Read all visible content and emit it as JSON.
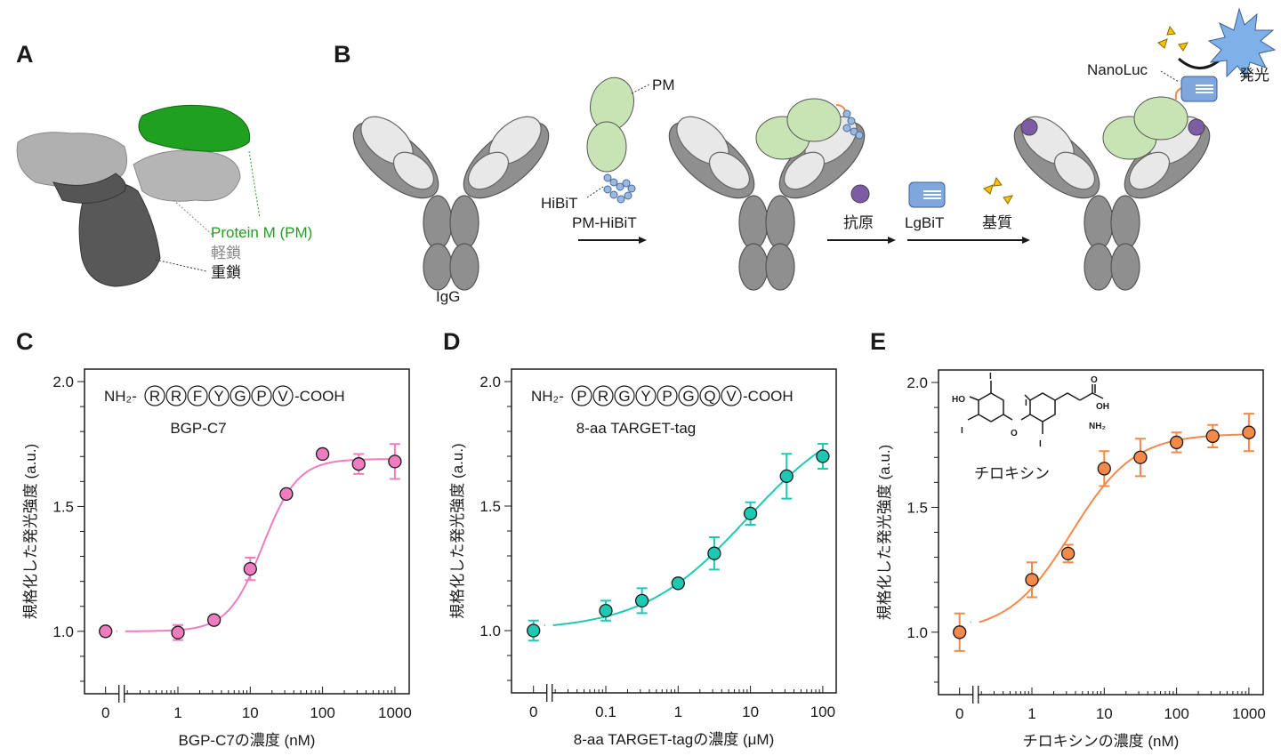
{
  "panels": {
    "A": {
      "label": "A",
      "pm_label": "Protein M (PM)",
      "light_chain": "軽鎖",
      "heavy_chain": "重鎖",
      "colors": {
        "pm": "#1fa11f",
        "light": "#b5b5b5",
        "heavy": "#555555"
      }
    },
    "B": {
      "label": "B",
      "igg_label": "IgG",
      "pm_label": "PM",
      "hibit_label": "HiBiT",
      "pm_hibit_label": "PM-HiBiT",
      "antigen_label": "抗原",
      "lgbit_label": "LgBiT",
      "substrate_label": "基質",
      "nanoluc_label": "NanoLuc",
      "luminescence_label": "発光",
      "colors": {
        "pm": "#c8e3b4",
        "hibit": "#9ab8e0",
        "antigen": "#7d5ca6",
        "substrate": "#f5c400",
        "light": "#7fb0e8"
      }
    },
    "C": {
      "label": "C"
    },
    "D": {
      "label": "D"
    },
    "E": {
      "label": "E"
    }
  },
  "chart_data": [
    {
      "type": "scatter",
      "panel": "C",
      "color": "#f07cc0",
      "annotation_prefix": "NH₂-",
      "sequence": [
        "R",
        "R",
        "F",
        "Y",
        "G",
        "P",
        "V"
      ],
      "annotation_suffix": "-COOH",
      "annotation_name": "BGP-C7",
      "xlabel": "BGP-C7の濃度 (nM)",
      "ylabel": "規格化した発光強度 (a.u.)",
      "xscale": "log with axis break at 0",
      "xticks": [
        "0",
        "1",
        "10",
        "100",
        "1000"
      ],
      "yticks": [
        "1.0",
        "1.5",
        "2.0"
      ],
      "ylim": [
        0.75,
        2.05
      ],
      "points": [
        {
          "x": 0,
          "y": 1.0,
          "err": 0.0
        },
        {
          "x": 1,
          "y": 0.995,
          "err": 0.03
        },
        {
          "x": 3.16,
          "y": 1.045,
          "err": 0.0
        },
        {
          "x": 10,
          "y": 1.25,
          "err": 0.045
        },
        {
          "x": 31.6,
          "y": 1.55,
          "err": 0.0
        },
        {
          "x": 100,
          "y": 1.71,
          "err": 0.0
        },
        {
          "x": 316,
          "y": 1.67,
          "err": 0.04
        },
        {
          "x": 1000,
          "y": 1.68,
          "err": 0.07
        }
      ],
      "fit": {
        "bottom": 1.0,
        "top": 1.69,
        "ec50": 15,
        "hill": 1.8
      }
    },
    {
      "type": "scatter",
      "panel": "D",
      "color": "#1ec9b4",
      "annotation_prefix": "NH₂-",
      "sequence": [
        "P",
        "R",
        "G",
        "Y",
        "P",
        "G",
        "Q",
        "V"
      ],
      "annotation_suffix": "-COOH",
      "annotation_name": "8-aa TARGET-tag",
      "xlabel": "8-aa TARGET-tagの濃度 (μM)",
      "ylabel": "規格化した発光強度 (a.u.)",
      "xscale": "log with axis break at 0",
      "xticks": [
        "0",
        "0.1",
        "1",
        "10",
        "100"
      ],
      "yticks": [
        "1.0",
        "1.5",
        "2.0"
      ],
      "ylim": [
        0.75,
        2.05
      ],
      "points": [
        {
          "x": 0,
          "y": 1.0,
          "err": 0.04
        },
        {
          "x": 0.1,
          "y": 1.08,
          "err": 0.04
        },
        {
          "x": 0.316,
          "y": 1.12,
          "err": 0.05
        },
        {
          "x": 1,
          "y": 1.19,
          "err": 0.0
        },
        {
          "x": 3.16,
          "y": 1.31,
          "err": 0.065
        },
        {
          "x": 10,
          "y": 1.47,
          "err": 0.045
        },
        {
          "x": 31.6,
          "y": 1.62,
          "err": 0.09
        },
        {
          "x": 100,
          "y": 1.7,
          "err": 0.05
        }
      ],
      "fit": {
        "bottom": 1.0,
        "top": 1.9,
        "ec50": 9,
        "hill": 0.6
      }
    },
    {
      "type": "scatter",
      "panel": "E",
      "color": "#f5894a",
      "annotation_name": "チロキシン",
      "structure_atoms": [
        "HO",
        "I",
        "I",
        "I",
        "I",
        "O",
        "OH",
        "O",
        "NH₂"
      ],
      "xlabel": "チロキシンの濃度 (nM)",
      "ylabel": "規格化した発光強度 (a.u.)",
      "xscale": "log with axis break at 0",
      "xticks": [
        "0",
        "1",
        "10",
        "100",
        "1000"
      ],
      "yticks": [
        "1.0",
        "1.5",
        "2.0"
      ],
      "ylim": [
        0.75,
        2.05
      ],
      "points": [
        {
          "x": 0,
          "y": 1.0,
          "err": 0.075
        },
        {
          "x": 1,
          "y": 1.21,
          "err": 0.07
        },
        {
          "x": 3.16,
          "y": 1.315,
          "err": 0.035
        },
        {
          "x": 10,
          "y": 1.655,
          "err": 0.07
        },
        {
          "x": 31.6,
          "y": 1.7,
          "err": 0.075
        },
        {
          "x": 100,
          "y": 1.76,
          "err": 0.04
        },
        {
          "x": 316,
          "y": 1.785,
          "err": 0.045
        },
        {
          "x": 1000,
          "y": 1.8,
          "err": 0.075
        }
      ],
      "fit": {
        "bottom": 1.0,
        "top": 1.795,
        "ec50": 3.5,
        "hill": 1.0
      }
    }
  ]
}
